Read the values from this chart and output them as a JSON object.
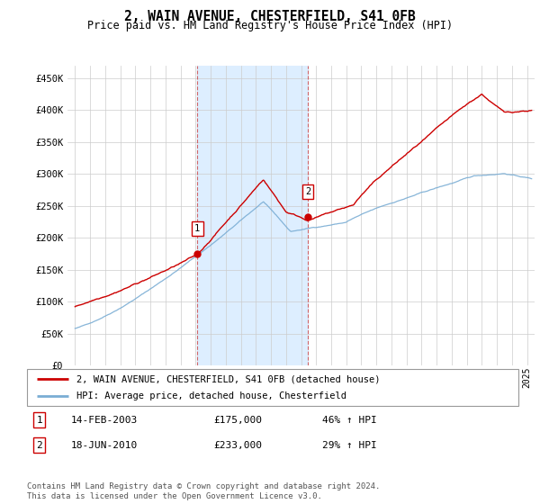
{
  "title": "2, WAIN AVENUE, CHESTERFIELD, S41 0FB",
  "subtitle": "Price paid vs. HM Land Registry's House Price Index (HPI)",
  "ylim": [
    0,
    470000
  ],
  "yticks": [
    0,
    50000,
    100000,
    150000,
    200000,
    250000,
    300000,
    350000,
    400000,
    450000
  ],
  "ytick_labels": [
    "£0",
    "£50K",
    "£100K",
    "£150K",
    "£200K",
    "£250K",
    "£300K",
    "£350K",
    "£400K",
    "£450K"
  ],
  "xlim_start": 1994.5,
  "xlim_end": 2025.5,
  "sale1_year": 2003.12,
  "sale1_price": 175000,
  "sale2_year": 2010.46,
  "sale2_price": 233000,
  "sale1_date": "14-FEB-2003",
  "sale1_hpi": "46% ↑ HPI",
  "sale2_date": "18-JUN-2010",
  "sale2_hpi": "29% ↑ HPI",
  "shaded_color": "#ddeeff",
  "red_line_color": "#cc0000",
  "blue_line_color": "#7aadd4",
  "legend1_text": "2, WAIN AVENUE, CHESTERFIELD, S41 0FB (detached house)",
  "legend2_text": "HPI: Average price, detached house, Chesterfield",
  "footer": "Contains HM Land Registry data © Crown copyright and database right 2024.\nThis data is licensed under the Open Government Licence v3.0."
}
